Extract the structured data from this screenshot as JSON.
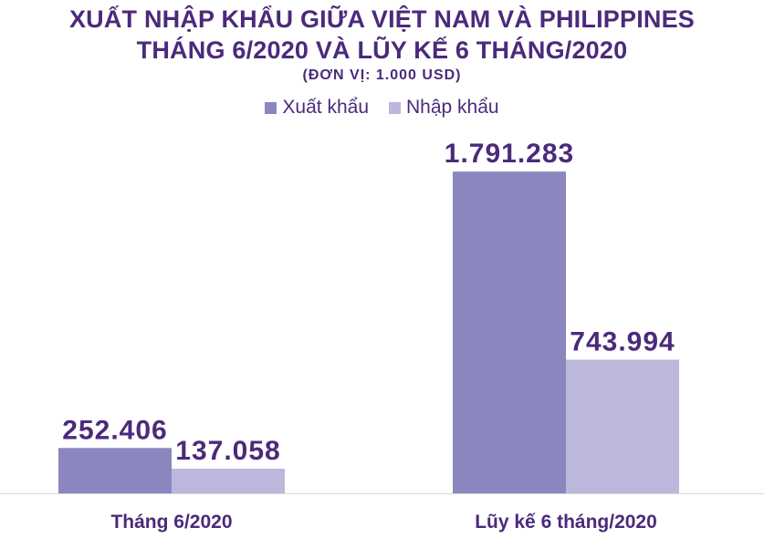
{
  "chart_data": {
    "type": "bar",
    "title": "XUẤT NHẬP KHẨU GIỮA VIỆT NAM VÀ PHILIPPINES",
    "subtitle": "THÁNG 6/2020 VÀ LŨY KẾ 6 THÁNG/2020",
    "unit": "(ĐƠN VỊ: 1.000 USD)",
    "categories": [
      "Tháng 6/2020",
      "Lũy kế 6 tháng/2020"
    ],
    "series": [
      {
        "name": "Xuất khẩu",
        "values": [
          252406,
          1791283
        ],
        "labels": [
          "252.406",
          "1.791.283"
        ],
        "color": "#8b86be"
      },
      {
        "name": "Nhập khẩu",
        "values": [
          137058,
          743994
        ],
        "labels": [
          "137.058",
          "743.994"
        ],
        "color": "#bcb8dc"
      }
    ],
    "ylim": [
      0,
      1980000
    ],
    "grid": false,
    "legend": "top-center"
  },
  "colors": {
    "title": "#4b2a7b",
    "axis": "#d9d9d9"
  }
}
